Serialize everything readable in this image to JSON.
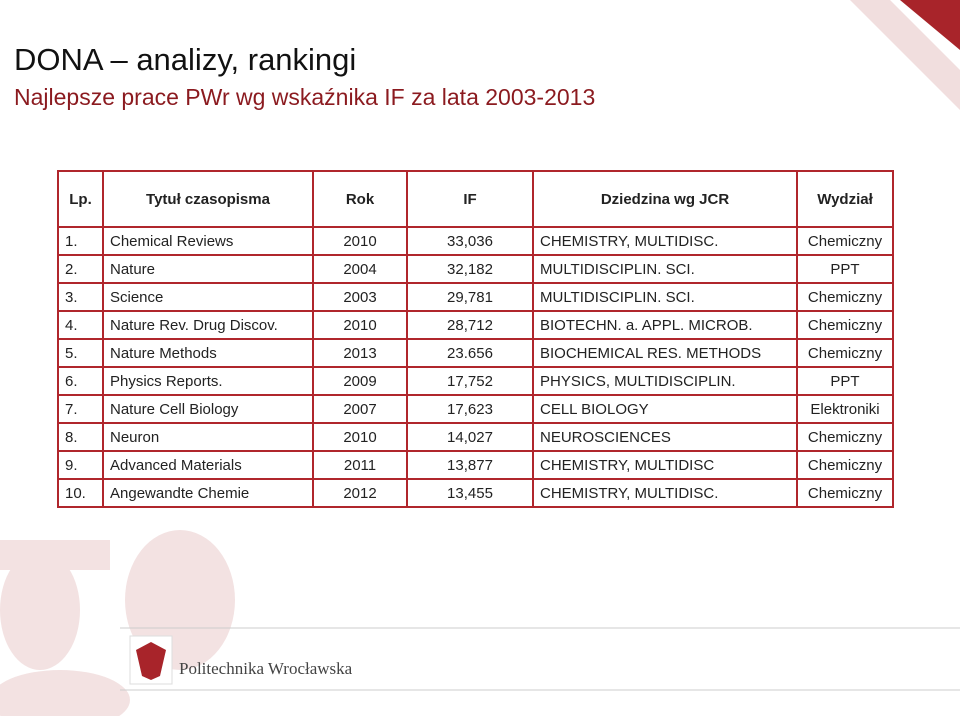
{
  "header": {
    "title": "DONA – analizy, rankingi",
    "subtitle": "Najlepsze prace PWr wg wskaźnika IF za lata 2003-2013"
  },
  "table": {
    "columns": [
      "Lp.",
      "Tytuł czasopisma",
      "Rok",
      "IF",
      "Dziedzina wg JCR",
      "Wydział"
    ],
    "rows": [
      [
        "1.",
        "Chemical Reviews",
        "2010",
        "33,036",
        "CHEMISTRY, MULTIDISC.",
        "Chemiczny"
      ],
      [
        "2.",
        "Nature",
        "2004",
        "32,182",
        "MULTIDISCIPLIN. SCI.",
        "PPT"
      ],
      [
        "3.",
        "Science",
        "2003",
        "29,781",
        "MULTIDISCIPLIN. SCI.",
        "Chemiczny"
      ],
      [
        "4.",
        "Nature Rev. Drug Discov.",
        "2010",
        "28,712",
        "BIOTECHN. a. APPL. MICROB.",
        "Chemiczny"
      ],
      [
        "5.",
        "Nature Methods",
        "2013",
        "23.656",
        "BIOCHEMICAL RES. METHODS",
        "Chemiczny"
      ],
      [
        "6.",
        "Physics Reports.",
        "2009",
        "17,752",
        "PHYSICS, MULTIDISCIPLIN.",
        "PPT"
      ],
      [
        "7.",
        "Nature Cell Biology",
        "2007",
        "17,623",
        "CELL BIOLOGY",
        "Elektroniki"
      ],
      [
        "8.",
        "Neuron",
        "2010",
        "14,027",
        "NEUROSCIENCES",
        "Chemiczny"
      ],
      [
        "9.",
        "Advanced Materials",
        "2011",
        "13,877",
        "CHEMISTRY, MULTIDISC",
        "Chemiczny"
      ],
      [
        "10.",
        "Angewandte Chemie",
        "2012",
        "13,455",
        "CHEMISTRY, MULTIDISC.",
        "Chemiczny"
      ]
    ]
  },
  "footer": {
    "logo_text": "Politechnika Wrocławska"
  }
}
